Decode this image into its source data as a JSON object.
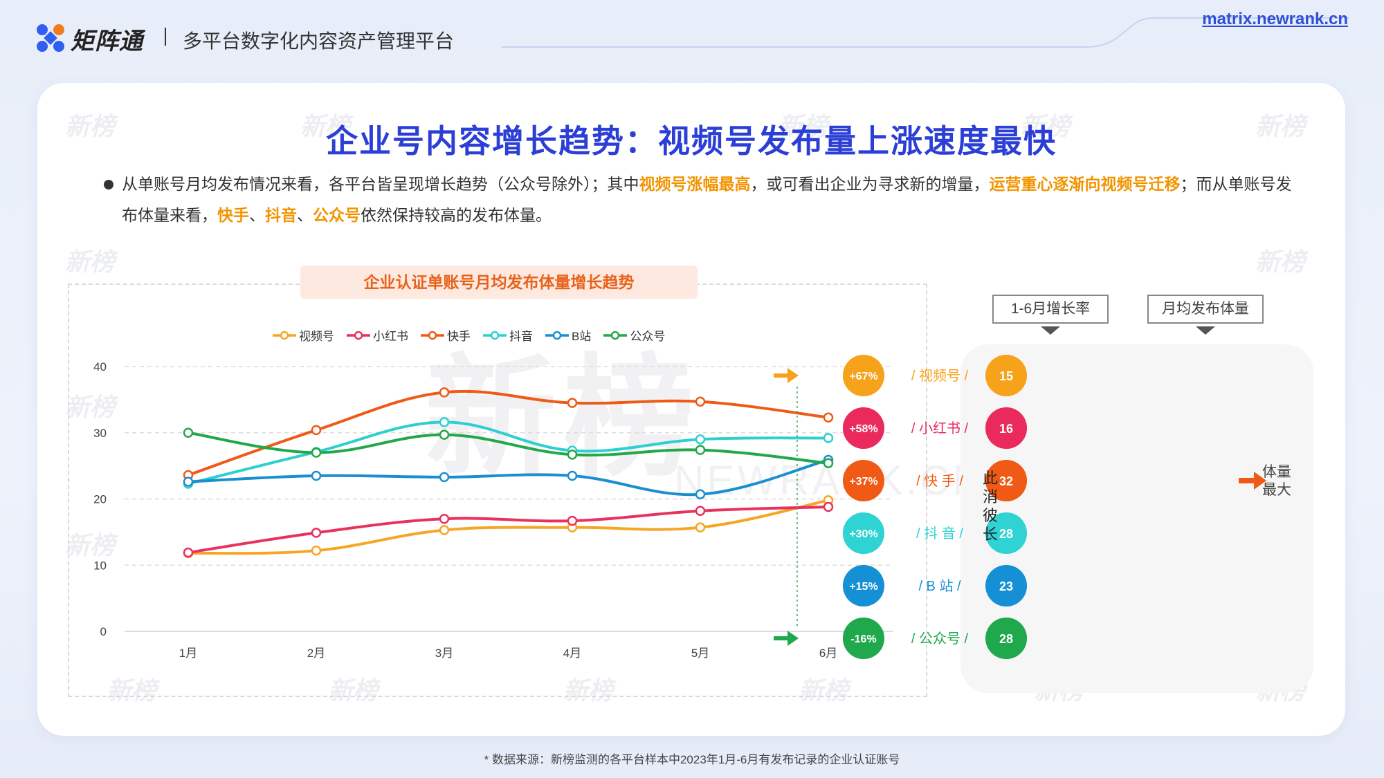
{
  "header": {
    "brand": "矩阵通",
    "subtitle": "多平台数字化内容资产管理平台",
    "link": "matrix.newrank.cn"
  },
  "watermark": {
    "text": "新榜",
    "big": "新榜",
    "big_sub": "NEWRANK.CN"
  },
  "slide": {
    "title": "企业号内容增长趋势：视频号发布量上涨速度最快",
    "desc": {
      "p1": "从单账号月均发布情况来看，各平台皆呈现增长趋势（公众号除外）；其中",
      "h1": "视频号涨幅最高",
      "p2": "，或可看出企业为寻求新的增量，",
      "h2": "运营重心逐渐向视频号迁移",
      "p3": "；而从单账号发布体量来看，",
      "h3": "快手",
      "s1": "、",
      "h4": "抖音",
      "s2": "、",
      "h5": "公众号",
      "p4": "依然保持较高的发布体量。"
    }
  },
  "chart_data": {
    "type": "line",
    "title": "企业认证单账号月均发布体量增长趋势",
    "xlabel": "",
    "ylabel": "",
    "categories": [
      "1月",
      "2月",
      "3月",
      "4月",
      "5月",
      "6月"
    ],
    "ylim": [
      0,
      40
    ],
    "yticks": [
      0,
      10,
      20,
      30,
      40
    ],
    "grid": true,
    "legend_position": "top",
    "series": [
      {
        "name": "视频号",
        "color": "#f5a623",
        "values": [
          11.8,
          12.2,
          15.3,
          15.7,
          15.7,
          19.8
        ]
      },
      {
        "name": "小红书",
        "color": "#e8315f",
        "values": [
          11.9,
          14.9,
          17.0,
          16.7,
          18.2,
          18.8
        ]
      },
      {
        "name": "快手",
        "color": "#ee5a17",
        "values": [
          23.6,
          30.4,
          36.1,
          34.5,
          34.7,
          32.3
        ]
      },
      {
        "name": "抖音",
        "color": "#2fcfcf",
        "values": [
          22.3,
          27.1,
          31.6,
          27.3,
          29.0,
          29.2
        ]
      },
      {
        "name": "B站",
        "color": "#1a8fd0",
        "values": [
          22.6,
          23.5,
          23.3,
          23.5,
          20.7,
          25.9
        ]
      },
      {
        "name": "公众号",
        "color": "#22a74a",
        "values": [
          30.0,
          27.0,
          29.7,
          26.7,
          27.4,
          25.4
        ]
      }
    ]
  },
  "growth_panel": {
    "header_left": "1-6月增长率",
    "header_right": "月均发布体量",
    "side_label": "此消彼长",
    "right_note_1": "体量",
    "right_note_2": "最大",
    "rows": [
      {
        "rate": "+67%",
        "label": "/ 视频号 /",
        "volume": "15",
        "color": "#f7a21b"
      },
      {
        "rate": "+58%",
        "label": "/ 小红书 /",
        "volume": "16",
        "color": "#ea2a5c"
      },
      {
        "rate": "+37%",
        "label": "/ 快  手 /",
        "volume": "32",
        "color": "#f05a14"
      },
      {
        "rate": "+30%",
        "label": "/ 抖  音 /",
        "volume": "28",
        "color": "#2fd3d3"
      },
      {
        "rate": "+15%",
        "label": "/ B  站 /",
        "volume": "23",
        "color": "#1690d4"
      },
      {
        "rate": "-16%",
        "label": "/ 公众号 /",
        "volume": "28",
        "color": "#1fa94c"
      }
    ]
  },
  "footnote": "* 数据来源：新榜监测的各平台样本中2023年1月-6月有发布记录的企业认证账号"
}
